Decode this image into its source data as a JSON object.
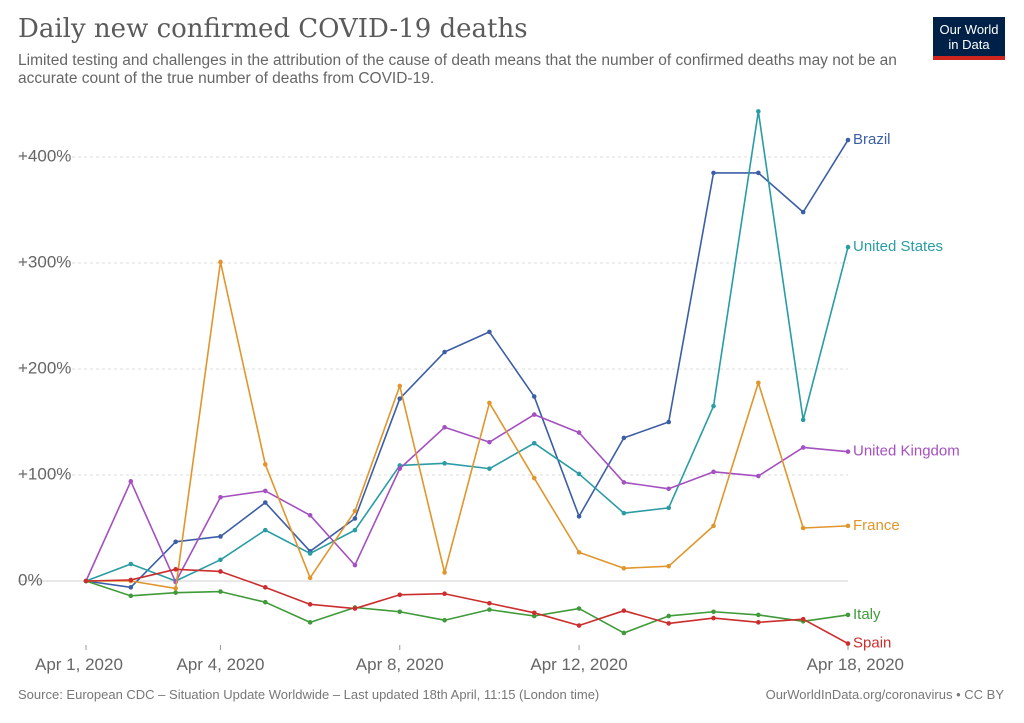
{
  "header": {
    "title": "Daily new confirmed COVID-19 deaths",
    "subtitle": "Limited testing and challenges in the attribution of the cause of death means that the number of confirmed deaths may not be an accurate count of the true number of deaths from COVID-19."
  },
  "logo": {
    "line1": "Our World",
    "line2": "in Data",
    "bg_color": "#002147",
    "stripe_color": "#ce261e"
  },
  "footer": {
    "source": "Source: European CDC – Situation Update Worldwide – Last updated 18th April, 11:15 (London time)",
    "link": "OurWorldInData.org/coronavirus • CC BY"
  },
  "chart_data": {
    "type": "line",
    "title": "Daily new confirmed COVID-19 deaths",
    "xlabel": "",
    "ylabel": "",
    "x": [
      "2020-04-01",
      "2020-04-02",
      "2020-04-03",
      "2020-04-04",
      "2020-04-05",
      "2020-04-06",
      "2020-04-07",
      "2020-04-08",
      "2020-04-09",
      "2020-04-10",
      "2020-04-11",
      "2020-04-12",
      "2020-04-13",
      "2020-04-14",
      "2020-04-15",
      "2020-04-16",
      "2020-04-17",
      "2020-04-18"
    ],
    "x_ticks": [
      {
        "x": "2020-04-01",
        "label": "Apr 1, 2020"
      },
      {
        "x": "2020-04-04",
        "label": "Apr 4, 2020"
      },
      {
        "x": "2020-04-08",
        "label": "Apr 8, 2020"
      },
      {
        "x": "2020-04-12",
        "label": "Apr 12, 2020"
      },
      {
        "x": "2020-04-18",
        "label": "Apr 18, 2020"
      }
    ],
    "y_ticks": [
      {
        "value": 0,
        "label": "0%"
      },
      {
        "value": 100,
        "label": "+100%"
      },
      {
        "value": 200,
        "label": "+200%"
      },
      {
        "value": 300,
        "label": "+300%"
      },
      {
        "value": 400,
        "label": "+400%"
      }
    ],
    "ylim": [
      -58,
      445
    ],
    "grid": true,
    "legend": "right-end labels",
    "series": [
      {
        "name": "Brazil",
        "color": "#3c5ea5",
        "values": [
          0,
          -6,
          37,
          42,
          74,
          28,
          59,
          172,
          216,
          235,
          174,
          61,
          135,
          150,
          385,
          385,
          348,
          416
        ]
      },
      {
        "name": "United States",
        "color": "#2a9ca4",
        "values": [
          0,
          16,
          0,
          20,
          48,
          26,
          48,
          109,
          111,
          106,
          130,
          101,
          64,
          69,
          165,
          443,
          152,
          315
        ]
      },
      {
        "name": "United Kingdom",
        "color": "#a450c0",
        "values": [
          0,
          94,
          -1,
          79,
          85,
          62,
          15,
          106,
          145,
          131,
          157,
          140,
          93,
          87,
          103,
          99,
          126,
          122
        ]
      },
      {
        "name": "France",
        "color": "#e0962c",
        "values": [
          0,
          0,
          -7,
          301,
          110,
          3,
          66,
          184,
          8,
          168,
          97,
          27,
          12,
          14,
          52,
          187,
          50,
          52
        ]
      },
      {
        "name": "Italy",
        "color": "#3f9a39",
        "values": [
          0,
          -14,
          -11,
          -10,
          -20,
          -39,
          -25,
          -29,
          -37,
          -27,
          -33,
          -26,
          -49,
          -33,
          -29,
          -32,
          -38,
          -32
        ]
      },
      {
        "name": "Spain",
        "color": "#cc2d2d",
        "values": [
          0,
          1,
          11,
          9,
          -6,
          -22,
          -26,
          -13,
          -12,
          -21,
          -30,
          -42,
          -28,
          -40,
          -35,
          -39,
          -36,
          -59
        ]
      }
    ]
  }
}
